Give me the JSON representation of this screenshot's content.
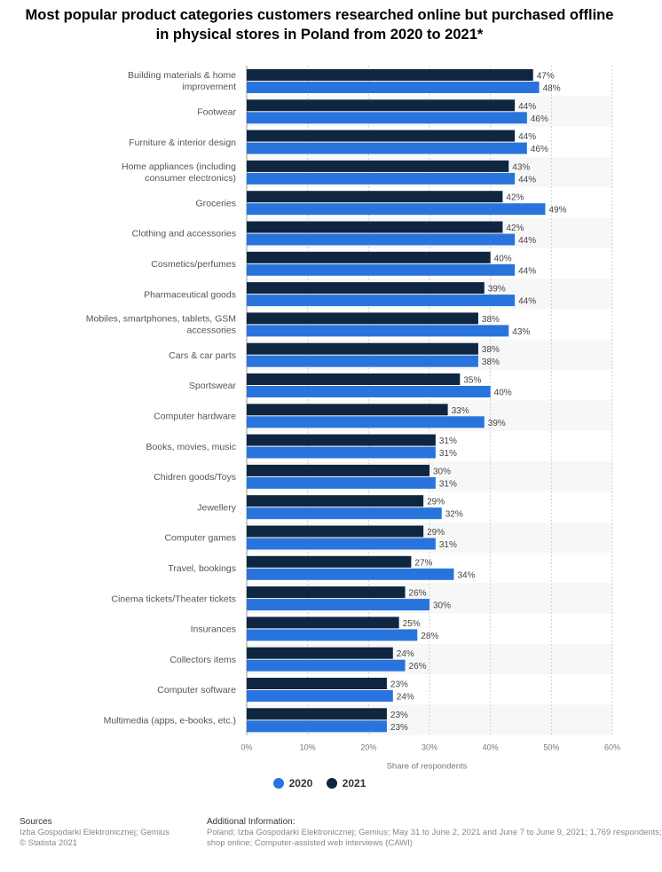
{
  "title_line1": "Most popular product categories customers researched online but purchased offline",
  "title_line2": "in physical stores in Poland from 2020 to 2021*",
  "chart_data": {
    "type": "bar",
    "orientation": "horizontal",
    "categories": [
      "Building materials & home improvement",
      "Footwear",
      "Furniture & interior design",
      "Home appliances (including consumer electronics)",
      "Groceries",
      "Clothing and accessories",
      "Cosmetics/perfumes",
      "Pharmaceutical goods",
      "Mobiles, smartphones, tablets, GSM accessories",
      "Cars & car parts",
      "Sportswear",
      "Computer hardware",
      "Books, movies, music",
      "Chidren goods/Toys",
      "Jewellery",
      "Computer games",
      "Travel, bookings",
      "Cinema tickets/Theater tickets",
      "Insurances",
      "Collectors items",
      "Computer software",
      "Multimedia (apps, e-books, etc.)"
    ],
    "series": [
      {
        "name": "2021",
        "color": "#0f2641",
        "values": [
          47,
          44,
          44,
          43,
          42,
          42,
          40,
          39,
          38,
          38,
          35,
          33,
          31,
          30,
          29,
          29,
          27,
          26,
          25,
          24,
          23,
          23
        ]
      },
      {
        "name": "2020",
        "color": "#2874dc",
        "values": [
          48,
          46,
          46,
          44,
          49,
          44,
          44,
          44,
          43,
          38,
          40,
          39,
          31,
          31,
          32,
          31,
          34,
          30,
          28,
          26,
          24,
          23
        ]
      }
    ],
    "value_suffix": "%",
    "xlim": [
      0,
      60
    ],
    "xticks": [
      "0%",
      "10%",
      "20%",
      "30%",
      "40%",
      "50%",
      "60%"
    ],
    "xlabel": "Share of respondents",
    "ylabel": "",
    "grid": true,
    "legend": [
      {
        "name": "2020",
        "color": "#2874dc"
      },
      {
        "name": "2021",
        "color": "#0f2641"
      }
    ],
    "legend_position": "bottom-center"
  },
  "footer": {
    "sources_title": "Sources",
    "sources_line1": "Izba Gospodarki Elektronicznej; Gemius",
    "sources_line2": "© Statista 2021",
    "info_title": "Additional Information:",
    "info_line1": "Poland; Izba Gospodarki Elektronicznej; Gemius; May 31 to June 2, 2021 and June 7 to June 9, 2021; 1,769 respondents;",
    "info_line2": "shop online; Computer-assisted web interviews (CAWI)"
  }
}
